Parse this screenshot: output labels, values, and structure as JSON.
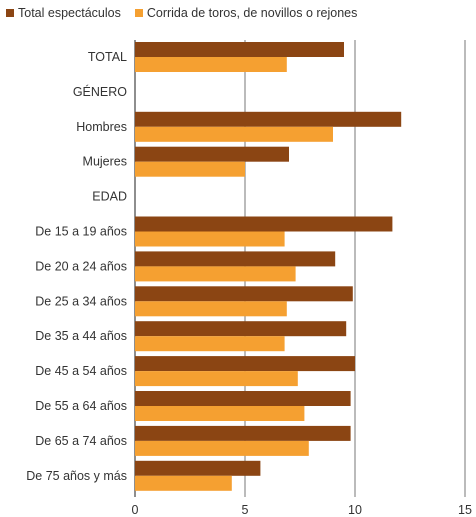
{
  "chart_data": {
    "type": "bar",
    "orientation": "horizontal",
    "categories": [
      "TOTAL",
      "GÉNERO",
      "Hombres",
      "Mujeres",
      "EDAD",
      "De 15 a 19 años",
      "De 20 a 24 años",
      "De 25 a 34 años",
      "De 35 a 44 años",
      "De 45 a 54 años",
      "De 55 a 64 años",
      "De 65 a 74 años",
      "De 75 años y más"
    ],
    "series": [
      {
        "name": "Total espectáculos",
        "color": "#8B4513",
        "values": [
          9.5,
          null,
          12.1,
          7.0,
          null,
          11.7,
          9.1,
          9.9,
          9.6,
          10.0,
          9.8,
          9.8,
          5.7
        ]
      },
      {
        "name": "Corrida de toros, de novillos o rejones",
        "color": "#F5A031",
        "values": [
          6.9,
          null,
          9.0,
          5.0,
          null,
          6.8,
          7.3,
          6.9,
          6.8,
          7.4,
          7.7,
          7.9,
          4.4
        ]
      }
    ],
    "xlim": [
      0,
      15
    ],
    "xticks": [
      "0",
      "5",
      "10",
      "15"
    ],
    "grid": true,
    "legend_position": "top-left",
    "title": "",
    "xlabel": "",
    "ylabel": ""
  }
}
